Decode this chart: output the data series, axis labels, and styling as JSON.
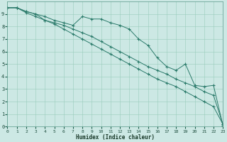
{
  "xlabel": "Humidex (Indice chaleur)",
  "bg_color": "#cce8e4",
  "axis_bg": "#cce8e4",
  "grid_color": "#99ccbb",
  "line_color": "#2a7a6a",
  "xlim": [
    0,
    23
  ],
  "ylim": [
    0,
    10
  ],
  "xticks": [
    0,
    1,
    2,
    3,
    4,
    5,
    6,
    7,
    8,
    9,
    10,
    11,
    12,
    13,
    14,
    15,
    16,
    17,
    18,
    19,
    20,
    21,
    22,
    23
  ],
  "yticks": [
    0,
    1,
    2,
    3,
    4,
    5,
    6,
    7,
    8,
    9
  ],
  "line1_x": [
    0,
    1,
    2,
    3,
    4,
    5,
    6,
    7,
    8,
    9,
    10,
    11,
    12,
    13,
    14,
    15,
    16,
    17,
    18,
    19,
    20,
    21,
    22,
    23
  ],
  "line1_y": [
    9.5,
    9.5,
    9.2,
    9.0,
    8.8,
    8.5,
    8.3,
    8.1,
    8.8,
    8.6,
    8.6,
    8.3,
    8.1,
    7.8,
    7.0,
    6.5,
    5.5,
    4.8,
    4.5,
    5.0,
    3.3,
    3.2,
    3.3,
    0.1
  ],
  "line2_x": [
    0,
    1,
    2,
    3,
    4,
    5,
    6,
    7,
    8,
    9,
    10,
    11,
    12,
    13,
    14,
    15,
    16,
    17,
    18,
    19,
    20,
    21,
    22,
    23
  ],
  "line2_y": [
    9.5,
    9.5,
    9.2,
    9.0,
    8.5,
    8.3,
    8.1,
    7.8,
    7.5,
    7.2,
    6.8,
    6.4,
    6.0,
    5.6,
    5.2,
    4.8,
    4.5,
    4.2,
    3.8,
    3.5,
    3.2,
    2.8,
    2.5,
    0.2
  ],
  "line3_x": [
    0,
    1,
    2,
    3,
    4,
    5,
    6,
    7,
    8,
    9,
    10,
    11,
    12,
    13,
    14,
    15,
    16,
    17,
    18,
    19,
    20,
    21,
    22,
    23
  ],
  "line3_y": [
    9.5,
    9.5,
    9.1,
    8.8,
    8.5,
    8.2,
    7.8,
    7.4,
    7.0,
    6.6,
    6.2,
    5.8,
    5.4,
    5.0,
    4.6,
    4.2,
    3.8,
    3.5,
    3.2,
    2.8,
    2.4,
    2.0,
    1.6,
    0.2
  ]
}
